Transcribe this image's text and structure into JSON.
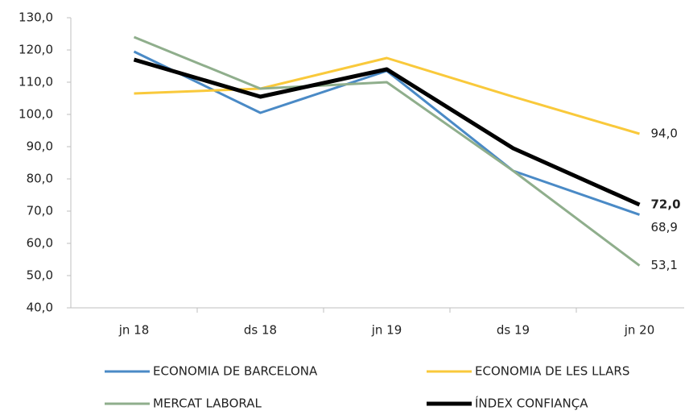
{
  "chart_data": {
    "type": "line",
    "categories": [
      "jn 18",
      "ds 18",
      "jn 19",
      "ds 19",
      "jn 20"
    ],
    "ylim": [
      40,
      130
    ],
    "yticks": [
      {
        "value": 40,
        "label": "40,0"
      },
      {
        "value": 50,
        "label": "50,0"
      },
      {
        "value": 60,
        "label": "60,0"
      },
      {
        "value": 70,
        "label": "70,0"
      },
      {
        "value": 80,
        "label": "80,0"
      },
      {
        "value": 90,
        "label": "90,0"
      },
      {
        "value": 100,
        "label": "100,0"
      },
      {
        "value": 110,
        "label": "110,0"
      },
      {
        "value": 120,
        "label": "120,0"
      },
      {
        "value": 130,
        "label": "130,0"
      }
    ],
    "grid": false,
    "legend": "bottom",
    "series": [
      {
        "name": "ECONOMIA DE BARCELONA",
        "color": "#4a8ac6",
        "width": 3,
        "values": [
          119.5,
          100.5,
          113.5,
          82.5,
          68.9
        ],
        "value_labels": [
          null,
          null,
          null,
          null,
          "68,9"
        ]
      },
      {
        "name": "ECONOMIA DE LES LLARS",
        "color": "#f9c93b",
        "width": 3,
        "values": [
          106.5,
          108,
          117.5,
          105.5,
          94.0
        ],
        "value_labels": [
          null,
          null,
          null,
          null,
          "94,0"
        ]
      },
      {
        "name": "MERCAT LABORAL",
        "color": "#8fae8c",
        "width": 3,
        "values": [
          124,
          108,
          110,
          82.5,
          53.1
        ],
        "value_labels": [
          null,
          null,
          null,
          null,
          "53,1"
        ]
      },
      {
        "name": "ÍNDEX CONFIANÇA",
        "color": "#000000",
        "width": 5,
        "label_weight": "bold",
        "values": [
          117,
          105.5,
          114,
          89.5,
          72.0
        ],
        "value_labels": [
          null,
          null,
          null,
          null,
          "72,0"
        ]
      }
    ]
  }
}
